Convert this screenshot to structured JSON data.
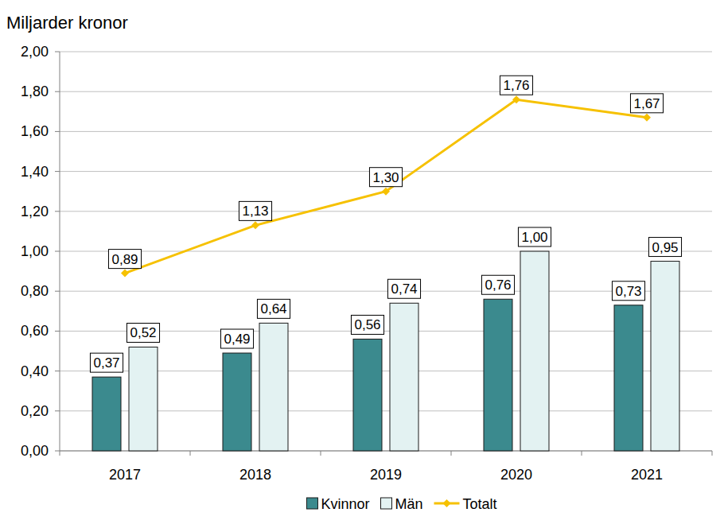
{
  "chart_data": {
    "type": "bar",
    "y_label": "Miljarder kronor",
    "categories": [
      "2017",
      "2018",
      "2019",
      "2020",
      "2021"
    ],
    "series": [
      {
        "name": "Kvinnor",
        "type": "bar",
        "color": "#3b8a8e",
        "values": [
          0.37,
          0.49,
          0.56,
          0.76,
          0.73
        ],
        "value_labels": [
          "0,37",
          "0,49",
          "0,56",
          "0,76",
          "0,73"
        ]
      },
      {
        "name": "Män",
        "type": "bar",
        "color": "#e3f2f2",
        "values": [
          0.52,
          0.64,
          0.74,
          1.0,
          0.95
        ],
        "value_labels": [
          "0,52",
          "0,64",
          "0,74",
          "1,00",
          "0,95"
        ]
      },
      {
        "name": "Totalt",
        "type": "line",
        "color": "#f6c100",
        "marker": "diamond",
        "values": [
          0.89,
          1.13,
          1.3,
          1.76,
          1.67
        ],
        "value_labels": [
          "0,89",
          "1,13",
          "1,30",
          "1,76",
          "1,67"
        ]
      }
    ],
    "ylim": [
      0,
      2
    ],
    "yticks": [
      {
        "value": 0,
        "label": "0,00"
      },
      {
        "value": 0.2,
        "label": "0,20"
      },
      {
        "value": 0.4,
        "label": "0,40"
      },
      {
        "value": 0.6,
        "label": "0,60"
      },
      {
        "value": 0.8,
        "label": "0,80"
      },
      {
        "value": 1,
        "label": "1,00"
      },
      {
        "value": 1.2,
        "label": "1,20"
      },
      {
        "value": 1.4,
        "label": "1,40"
      },
      {
        "value": 1.6,
        "label": "1,60"
      },
      {
        "value": 1.8,
        "label": "1,80"
      },
      {
        "value": 2,
        "label": "2,00"
      }
    ],
    "grid": true,
    "legend": "bottom",
    "data_labels": true
  }
}
